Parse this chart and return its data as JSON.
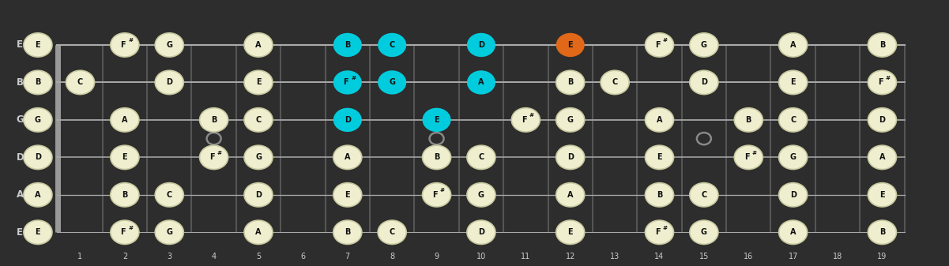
{
  "bg_color": "#2d2d2d",
  "fret_line_color": "#555555",
  "nut_color": "#999999",
  "string_color": "#aaaaaa",
  "label_color": "#cccccc",
  "note_fill_default": "#efefd0",
  "note_fill_cyan": "#00ccdd",
  "note_fill_orange": "#e06818",
  "note_text_color": "#111111",
  "marker_color": "#888888",
  "num_frets": 19,
  "string_names_bottom_to_top": [
    "E",
    "A",
    "D",
    "G",
    "B",
    "E"
  ],
  "fret_markers": [
    4,
    9,
    15
  ],
  "fret_numbers": [
    1,
    2,
    3,
    4,
    5,
    6,
    7,
    8,
    9,
    10,
    11,
    12,
    13,
    14,
    15,
    16,
    17,
    18,
    19
  ],
  "notes": [
    {
      "string": 5,
      "fret": 0,
      "note": "E",
      "color": "default"
    },
    {
      "string": 5,
      "fret": 2,
      "note": "F#",
      "color": "default"
    },
    {
      "string": 5,
      "fret": 3,
      "note": "G",
      "color": "default"
    },
    {
      "string": 5,
      "fret": 5,
      "note": "A",
      "color": "default"
    },
    {
      "string": 5,
      "fret": 7,
      "note": "B",
      "color": "cyan"
    },
    {
      "string": 5,
      "fret": 8,
      "note": "C",
      "color": "cyan"
    },
    {
      "string": 5,
      "fret": 10,
      "note": "D",
      "color": "cyan"
    },
    {
      "string": 5,
      "fret": 12,
      "note": "E",
      "color": "orange"
    },
    {
      "string": 5,
      "fret": 14,
      "note": "F#",
      "color": "default"
    },
    {
      "string": 5,
      "fret": 15,
      "note": "G",
      "color": "default"
    },
    {
      "string": 5,
      "fret": 17,
      "note": "A",
      "color": "default"
    },
    {
      "string": 5,
      "fret": 19,
      "note": "B",
      "color": "default"
    },
    {
      "string": 4,
      "fret": 0,
      "note": "B",
      "color": "default"
    },
    {
      "string": 4,
      "fret": 1,
      "note": "C",
      "color": "default"
    },
    {
      "string": 4,
      "fret": 3,
      "note": "D",
      "color": "default"
    },
    {
      "string": 4,
      "fret": 5,
      "note": "E",
      "color": "default"
    },
    {
      "string": 4,
      "fret": 7,
      "note": "F#",
      "color": "cyan"
    },
    {
      "string": 4,
      "fret": 8,
      "note": "G",
      "color": "cyan"
    },
    {
      "string": 4,
      "fret": 10,
      "note": "A",
      "color": "cyan"
    },
    {
      "string": 4,
      "fret": 12,
      "note": "B",
      "color": "default"
    },
    {
      "string": 4,
      "fret": 13,
      "note": "C",
      "color": "default"
    },
    {
      "string": 4,
      "fret": 15,
      "note": "D",
      "color": "default"
    },
    {
      "string": 4,
      "fret": 17,
      "note": "E",
      "color": "default"
    },
    {
      "string": 4,
      "fret": 19,
      "note": "F#",
      "color": "default"
    },
    {
      "string": 3,
      "fret": 0,
      "note": "G",
      "color": "default"
    },
    {
      "string": 3,
      "fret": 2,
      "note": "A",
      "color": "default"
    },
    {
      "string": 3,
      "fret": 4,
      "note": "B",
      "color": "default"
    },
    {
      "string": 3,
      "fret": 5,
      "note": "C",
      "color": "default"
    },
    {
      "string": 3,
      "fret": 7,
      "note": "D",
      "color": "cyan"
    },
    {
      "string": 3,
      "fret": 9,
      "note": "E",
      "color": "cyan"
    },
    {
      "string": 3,
      "fret": 11,
      "note": "F#",
      "color": "default"
    },
    {
      "string": 3,
      "fret": 12,
      "note": "G",
      "color": "default"
    },
    {
      "string": 3,
      "fret": 14,
      "note": "A",
      "color": "default"
    },
    {
      "string": 3,
      "fret": 16,
      "note": "B",
      "color": "default"
    },
    {
      "string": 3,
      "fret": 17,
      "note": "C",
      "color": "default"
    },
    {
      "string": 3,
      "fret": 19,
      "note": "D",
      "color": "default"
    },
    {
      "string": 2,
      "fret": 0,
      "note": "D",
      "color": "default"
    },
    {
      "string": 2,
      "fret": 2,
      "note": "E",
      "color": "default"
    },
    {
      "string": 2,
      "fret": 4,
      "note": "F#",
      "color": "default"
    },
    {
      "string": 2,
      "fret": 5,
      "note": "G",
      "color": "default"
    },
    {
      "string": 2,
      "fret": 7,
      "note": "A",
      "color": "default"
    },
    {
      "string": 2,
      "fret": 9,
      "note": "B",
      "color": "default"
    },
    {
      "string": 2,
      "fret": 10,
      "note": "C",
      "color": "default"
    },
    {
      "string": 2,
      "fret": 12,
      "note": "D",
      "color": "default"
    },
    {
      "string": 2,
      "fret": 14,
      "note": "E",
      "color": "default"
    },
    {
      "string": 2,
      "fret": 16,
      "note": "F#",
      "color": "default"
    },
    {
      "string": 2,
      "fret": 17,
      "note": "G",
      "color": "default"
    },
    {
      "string": 2,
      "fret": 19,
      "note": "A",
      "color": "default"
    },
    {
      "string": 1,
      "fret": 0,
      "note": "A",
      "color": "default"
    },
    {
      "string": 1,
      "fret": 2,
      "note": "B",
      "color": "default"
    },
    {
      "string": 1,
      "fret": 3,
      "note": "C",
      "color": "default"
    },
    {
      "string": 1,
      "fret": 5,
      "note": "D",
      "color": "default"
    },
    {
      "string": 1,
      "fret": 7,
      "note": "E",
      "color": "default"
    },
    {
      "string": 1,
      "fret": 9,
      "note": "F#",
      "color": "default"
    },
    {
      "string": 1,
      "fret": 10,
      "note": "G",
      "color": "default"
    },
    {
      "string": 1,
      "fret": 12,
      "note": "A",
      "color": "default"
    },
    {
      "string": 1,
      "fret": 14,
      "note": "B",
      "color": "default"
    },
    {
      "string": 1,
      "fret": 15,
      "note": "C",
      "color": "default"
    },
    {
      "string": 1,
      "fret": 17,
      "note": "D",
      "color": "default"
    },
    {
      "string": 1,
      "fret": 19,
      "note": "E",
      "color": "default"
    },
    {
      "string": 0,
      "fret": 0,
      "note": "E",
      "color": "default"
    },
    {
      "string": 0,
      "fret": 2,
      "note": "F#",
      "color": "default"
    },
    {
      "string": 0,
      "fret": 3,
      "note": "G",
      "color": "default"
    },
    {
      "string": 0,
      "fret": 5,
      "note": "A",
      "color": "default"
    },
    {
      "string": 0,
      "fret": 7,
      "note": "B",
      "color": "default"
    },
    {
      "string": 0,
      "fret": 8,
      "note": "C",
      "color": "default"
    },
    {
      "string": 0,
      "fret": 10,
      "note": "D",
      "color": "default"
    },
    {
      "string": 0,
      "fret": 12,
      "note": "E",
      "color": "default"
    },
    {
      "string": 0,
      "fret": 14,
      "note": "F#",
      "color": "default"
    },
    {
      "string": 0,
      "fret": 15,
      "note": "G",
      "color": "default"
    },
    {
      "string": 0,
      "fret": 17,
      "note": "A",
      "color": "default"
    },
    {
      "string": 0,
      "fret": 19,
      "note": "B",
      "color": "default"
    }
  ]
}
